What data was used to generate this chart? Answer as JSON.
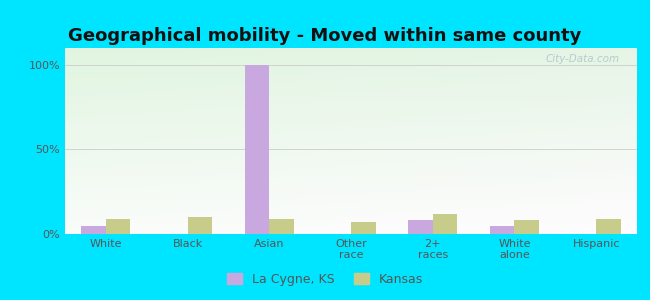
{
  "title": "Geographical mobility - Moved within same county",
  "categories": [
    "White",
    "Black",
    "Asian",
    "Other\nrace",
    "2+\nraces",
    "White\nalone",
    "Hispanic"
  ],
  "lacygne_values": [
    5,
    0,
    100,
    0,
    8,
    5,
    0
  ],
  "kansas_values": [
    9,
    10,
    9,
    7,
    12,
    8,
    9
  ],
  "lacygne_color": "#c9a8e0",
  "kansas_color": "#c8cc8a",
  "bar_width": 0.3,
  "ylim": [
    0,
    110
  ],
  "yticks": [
    0,
    50,
    100
  ],
  "ytick_labels": [
    "0%",
    "50%",
    "100%"
  ],
  "background_color": "#00e5ff",
  "title_fontsize": 13,
  "axis_fontsize": 8,
  "legend_lacygne": "La Cygne, KS",
  "legend_kansas": "Kansas",
  "watermark": "City-Data.com"
}
